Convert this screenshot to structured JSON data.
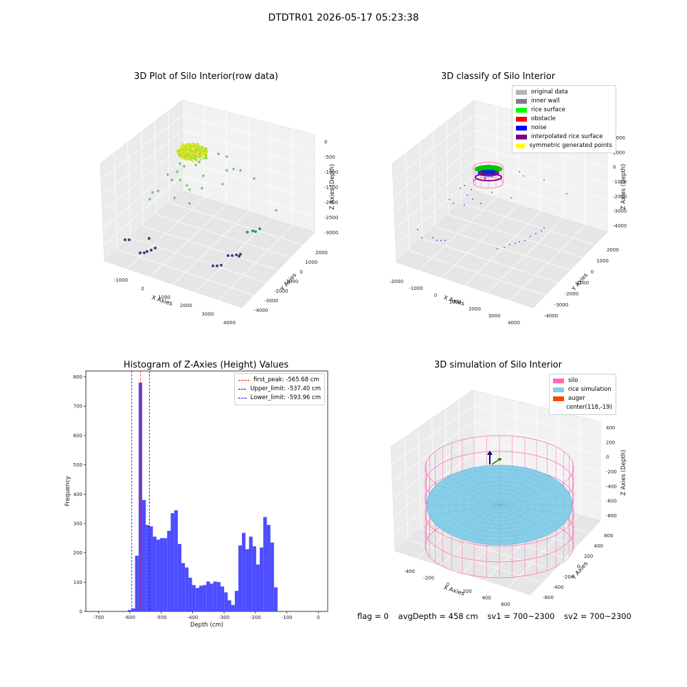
{
  "suptitle": "DTDTR01 2026-05-17 05:23:38",
  "footer": {
    "flag": "flag = 0",
    "avg_depth": "avgDepth = 458 cm",
    "sv1": "sv1 = 700~2300",
    "sv2": "sv2 = 700~2300"
  },
  "panels": {
    "raw": {
      "title": "3D Plot of Silo Interior(row data)",
      "xlabel": "X Axies",
      "ylabel": "Y Axies",
      "zlabel": "Z Axies (Depth)",
      "xticks": [
        "-1000",
        "0",
        "1000",
        "2000",
        "3000",
        "4000"
      ],
      "yticks": [
        "-4000",
        "-3000",
        "-2000",
        "-1000",
        "0",
        "1000",
        "2000"
      ],
      "zticks": [
        "0",
        "-500",
        "-1000",
        "-1500",
        "-2000",
        "-2500",
        "-3000"
      ]
    },
    "classify": {
      "title": "3D classify of Silo Interior",
      "xlabel": "X Axies",
      "ylabel": "Y Axies",
      "zlabel": "Z Axies (Depth)",
      "xticks": [
        "-2000",
        "-1000",
        "0",
        "1000",
        "2000",
        "3000",
        "4000"
      ],
      "yticks": [
        "-4000",
        "-3000",
        "-2000",
        "-1000",
        "0",
        "1000",
        "2000"
      ],
      "zticks": [
        "2000",
        "1000",
        "0",
        "-1000",
        "-2000",
        "-3000",
        "-4000"
      ],
      "legend": [
        {
          "label": "original data",
          "color": "#b3b3b3"
        },
        {
          "label": "inner wall",
          "color": "#808080"
        },
        {
          "label": "rice surface",
          "color": "#00ff00"
        },
        {
          "label": "obstacle",
          "color": "#ff0000"
        },
        {
          "label": "noise",
          "color": "#0000ff"
        },
        {
          "label": "interpolated rice surface",
          "color": "#800080"
        },
        {
          "label": "symmetric generated points",
          "color": "#ffff00"
        }
      ]
    },
    "simulation": {
      "title": "3D simulation of Silo Interior",
      "xlabel": "X Axies",
      "ylabel": "Y Axies",
      "zlabel": "Z Axies (Depth)",
      "xticks": [
        "-400",
        "-200",
        "0",
        "200",
        "400",
        "600"
      ],
      "yticks": [
        "-600",
        "-400",
        "-200",
        "0",
        "200",
        "400",
        "600"
      ],
      "zticks": [
        "400",
        "200",
        "0",
        "-200",
        "-400",
        "-600",
        "-800"
      ],
      "legend": [
        {
          "label": "silo",
          "color": "#ff69b4"
        },
        {
          "label": "rice simulation",
          "color": "#87ceeb"
        },
        {
          "label": "auger",
          "color": "#ff4500"
        },
        {
          "label": "center(118,-19)",
          "color": ""
        }
      ]
    }
  },
  "chart_data": {
    "type": "bar",
    "title": "Histogram of Z-Axies (Height) Values",
    "xlabel": "Depth (cm)",
    "ylabel": "Frequency",
    "xlim": [
      -740,
      30
    ],
    "ylim": [
      0,
      820
    ],
    "xticks": [
      -700,
      -600,
      -500,
      -400,
      -300,
      -200,
      -100,
      0
    ],
    "yticks": [
      0,
      100,
      200,
      300,
      400,
      500,
      600,
      700,
      800
    ],
    "bins": {
      "start": -606,
      "width": 11.34,
      "counts": [
        5,
        10,
        190,
        780,
        380,
        295,
        290,
        255,
        245,
        250,
        250,
        275,
        335,
        345,
        230,
        165,
        150,
        115,
        90,
        80,
        88,
        90,
        102,
        95,
        102,
        100,
        85,
        65,
        38,
        22,
        70,
        225,
        268,
        212,
        255,
        222,
        160,
        218,
        322,
        295,
        235,
        82
      ]
    },
    "vlines": [
      {
        "label": "first_peak: -565.68 cm",
        "value": -565.68,
        "color": "#ff0000"
      },
      {
        "label": "Upper_limit: -537.40 cm",
        "value": -537.4,
        "color": "#0000ff"
      },
      {
        "label": "Lower_limit: -593.96 cm",
        "value": -593.96,
        "color": "#0000ff"
      }
    ],
    "bar_color": "#4d4dff"
  }
}
